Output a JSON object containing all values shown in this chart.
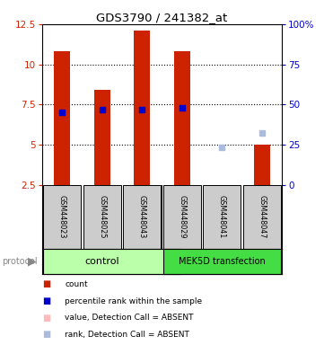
{
  "title": "GDS3790 / 241382_at",
  "samples": [
    "GSM448023",
    "GSM448025",
    "GSM448043",
    "GSM448029",
    "GSM448041",
    "GSM448047"
  ],
  "bar_values": [
    10.8,
    8.4,
    12.1,
    10.8,
    null,
    5.0
  ],
  "bar_absent": [
    false,
    false,
    false,
    false,
    true,
    false
  ],
  "rank_values": [
    7.0,
    7.2,
    7.2,
    7.3,
    4.85,
    5.7
  ],
  "rank_absent": [
    false,
    false,
    false,
    false,
    true,
    true
  ],
  "ylim_left": [
    2.5,
    12.5
  ],
  "ylim_right": [
    0,
    100
  ],
  "yticks_left": [
    2.5,
    5.0,
    7.5,
    10.0,
    12.5
  ],
  "yticks_right": [
    0,
    25,
    50,
    75,
    100
  ],
  "ytick_labels_left": [
    "2.5",
    "5",
    "7.5",
    "10",
    "12.5"
  ],
  "ytick_labels_right": [
    "0",
    "25",
    "50",
    "75",
    "100%"
  ],
  "left_color": "#cc2200",
  "right_color": "#0000cc",
  "bar_color": "#cc2200",
  "bar_absent_color": "#ffbbbb",
  "rank_color": "#0000cc",
  "rank_absent_color": "#aabbdd",
  "control_color": "#bbffaa",
  "mek5d_color": "#44dd44",
  "sample_box_color": "#cccccc",
  "legend_items": [
    {
      "label": "count",
      "color": "#cc2200"
    },
    {
      "label": "percentile rank within the sample",
      "color": "#0000cc"
    },
    {
      "label": "value, Detection Call = ABSENT",
      "color": "#ffbbbb"
    },
    {
      "label": "rank, Detection Call = ABSENT",
      "color": "#aabbdd"
    }
  ],
  "bar_width": 0.4,
  "rank_marker_size": 5
}
